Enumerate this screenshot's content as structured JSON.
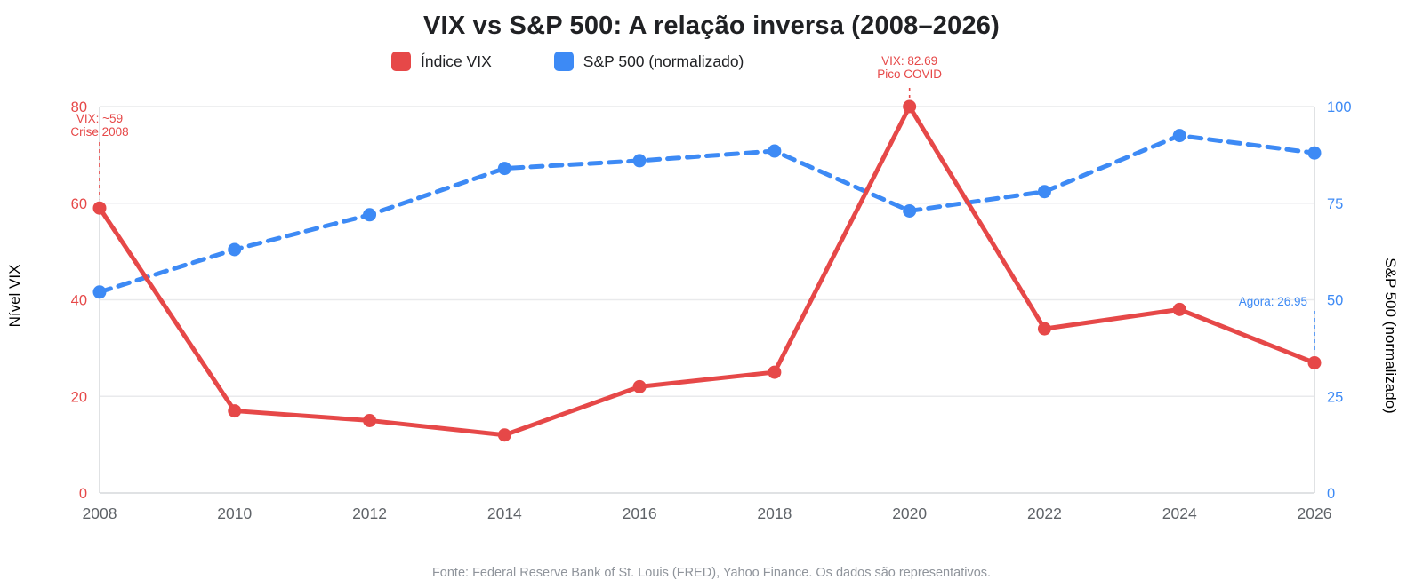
{
  "title": "VIX vs S&P 500: A relação inversa (2008–2026)",
  "footer": "Fonte: Federal Reserve Bank of St. Louis (FRED), Yahoo Finance. Os dados são representativos.",
  "colors": {
    "vix_red": "#e64848",
    "sp500_blue": "#3d8af5",
    "grid": "#e9eaec",
    "axis_border": "#d6d8db",
    "x_tick": "#5f6368",
    "title_text": "#202124",
    "footer_text": "#8f949b"
  },
  "legend": {
    "items": [
      {
        "label": "Índice VIX",
        "color": "#e64848"
      },
      {
        "label": "S&P 500 (normalizado)",
        "color": "#3d8af5"
      }
    ]
  },
  "chart_data": {
    "type": "line",
    "x": [
      2008,
      2010,
      2012,
      2014,
      2016,
      2018,
      2020,
      2022,
      2024,
      2026
    ],
    "series": [
      {
        "name": "Índice VIX",
        "axis": "left",
        "color": "#e64848",
        "style": "solid",
        "values": [
          59,
          17,
          15,
          12,
          22,
          25,
          82.69,
          34,
          38,
          26.95
        ]
      },
      {
        "name": "S&P 500 (normalizado)",
        "axis": "right",
        "color": "#3d8af5",
        "style": "dashed",
        "values": [
          52,
          63,
          72,
          84,
          86,
          88.5,
          73,
          78,
          92.5,
          88
        ]
      }
    ],
    "left_axis": {
      "label": "Nível VIX",
      "ticks": [
        0,
        20,
        40,
        60,
        80
      ],
      "range": [
        0,
        80
      ],
      "color": "#e64848"
    },
    "right_axis": {
      "label": "S&P 500 (normalizado)",
      "ticks": [
        0,
        25,
        50,
        75,
        100
      ],
      "range": [
        0,
        100
      ],
      "color": "#3d8af5"
    },
    "annotations": [
      {
        "lines": [
          "VIX: ~59",
          "Crise 2008"
        ],
        "year": 2008,
        "value": 59,
        "color": "#e64848"
      },
      {
        "lines": [
          "VIX: 82.69",
          "Pico COVID"
        ],
        "year": 2020,
        "value": 82.69,
        "color": "#e64848"
      },
      {
        "lines": [
          "Agora: 26.95"
        ],
        "year": 2026,
        "value": 26.95,
        "color": "#3d8af5"
      }
    ],
    "grid": true,
    "legend_position": "top"
  }
}
